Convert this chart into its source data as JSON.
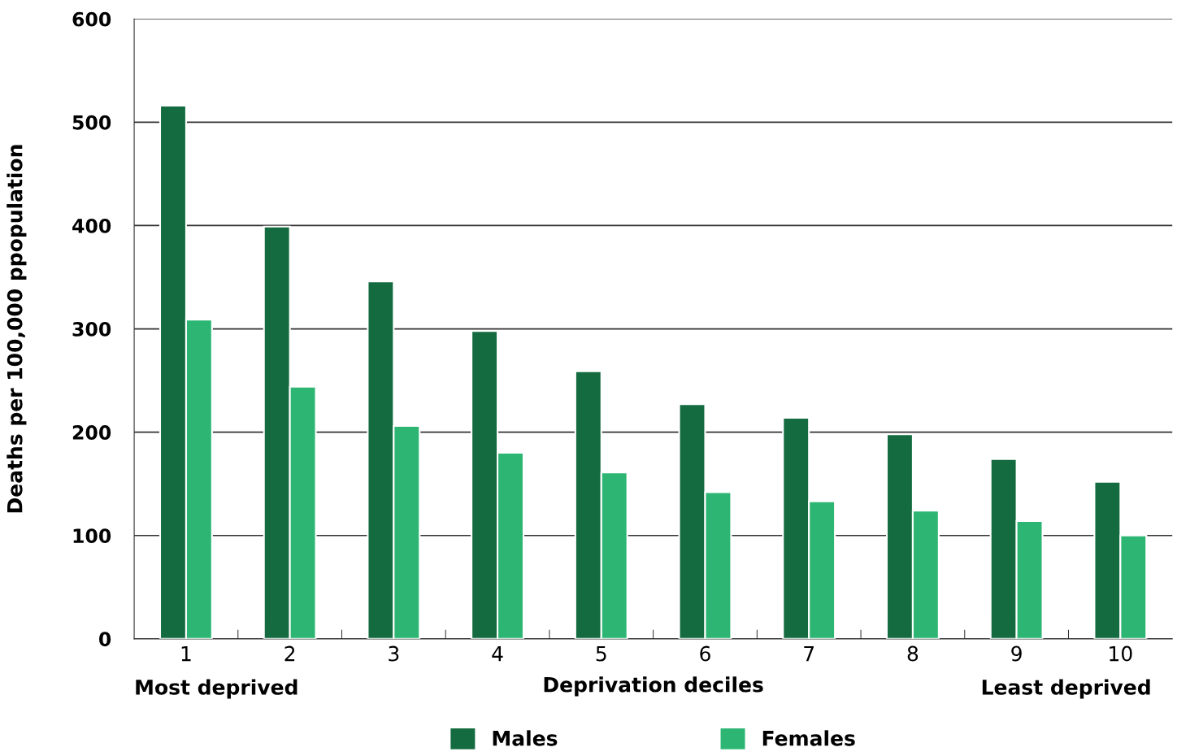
{
  "chart_data": {
    "type": "bar",
    "ylabel": "Deaths per 100,000 ppopulation",
    "xlabel": "Deprivation deciles",
    "categories": [
      "1",
      "2",
      "3",
      "4",
      "5",
      "6",
      "7",
      "8",
      "9",
      "10"
    ],
    "series": [
      {
        "name": "Males",
        "color": "#136b3f",
        "values": [
          516,
          399,
          346,
          298,
          259,
          227,
          214,
          198,
          174,
          152
        ]
      },
      {
        "name": "Females",
        "color": "#2db673",
        "values": [
          309,
          244,
          206,
          180,
          161,
          142,
          133,
          124,
          114,
          100
        ]
      }
    ],
    "ylim": [
      0,
      600
    ],
    "yticks": [
      0,
      100,
      200,
      300,
      400,
      500,
      600
    ],
    "grid": "y",
    "legend": "bottom",
    "annotations": [
      "Most deprived",
      "Least deprived"
    ]
  }
}
